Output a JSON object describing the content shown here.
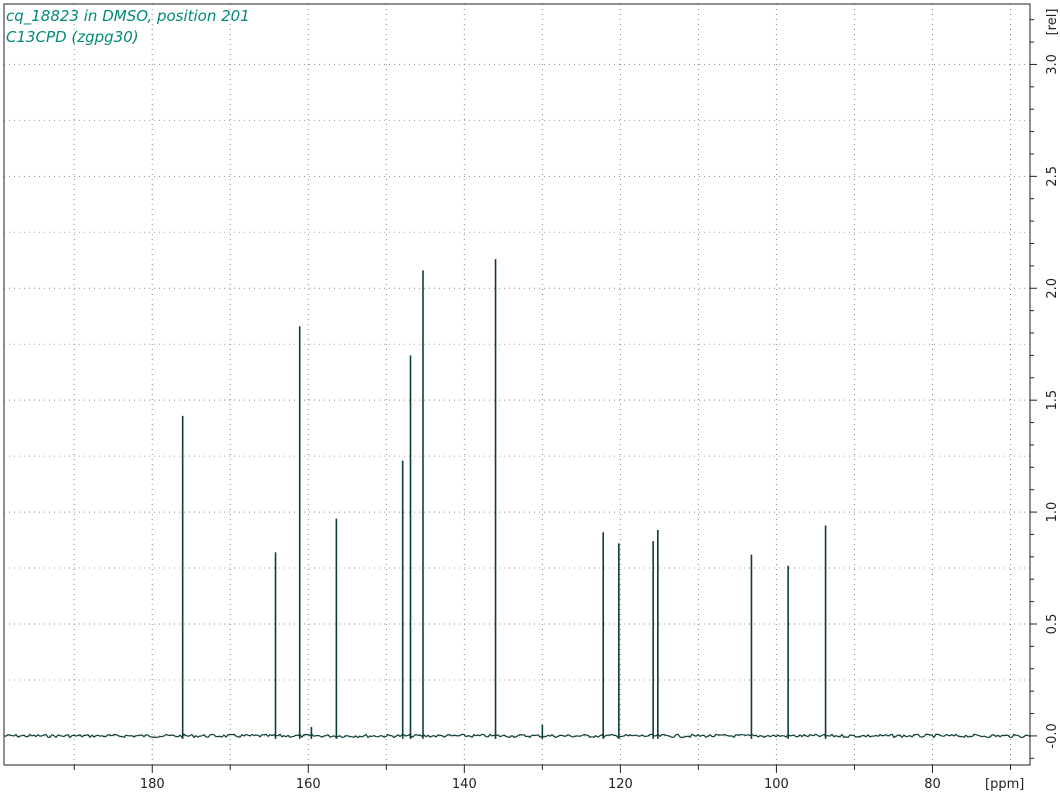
{
  "annotations": {
    "line1": "cq_18823 in DMSO, position 201",
    "line2": "C13CPD (zgpg30)"
  },
  "chart_data": {
    "type": "line",
    "title": "",
    "xlabel": "[ppm]",
    "ylabel": "[rel]",
    "x_reversed": true,
    "xlim": [
      199,
      67.5
    ],
    "ylim": [
      -0.13,
      3.27
    ],
    "x_ticks": [
      180,
      160,
      140,
      120,
      100,
      80
    ],
    "x_minor_ticks": [
      190,
      170,
      150,
      130,
      110,
      90,
      70
    ],
    "y_ticks": [
      -0.0,
      0.5,
      1.0,
      1.5,
      2.0,
      2.5,
      3.0
    ],
    "y_tick_labels": [
      "-0.0",
      "0.5",
      "1.0",
      "1.5",
      "2.0",
      "2.5",
      "3.0"
    ],
    "grid": true,
    "peaks": [
      {
        "ppm": 176.1,
        "intensity": 1.43
      },
      {
        "ppm": 164.2,
        "intensity": 0.82
      },
      {
        "ppm": 161.1,
        "intensity": 1.83
      },
      {
        "ppm": 159.6,
        "intensity": 0.04
      },
      {
        "ppm": 156.4,
        "intensity": 0.97
      },
      {
        "ppm": 147.9,
        "intensity": 1.23
      },
      {
        "ppm": 146.9,
        "intensity": 1.7
      },
      {
        "ppm": 145.3,
        "intensity": 2.08
      },
      {
        "ppm": 136.0,
        "intensity": 2.13
      },
      {
        "ppm": 130.0,
        "intensity": 0.05
      },
      {
        "ppm": 122.2,
        "intensity": 0.91
      },
      {
        "ppm": 120.2,
        "intensity": 0.86
      },
      {
        "ppm": 115.8,
        "intensity": 0.87
      },
      {
        "ppm": 115.2,
        "intensity": 0.92
      },
      {
        "ppm": 103.2,
        "intensity": 0.81
      },
      {
        "ppm": 98.5,
        "intensity": 0.76
      },
      {
        "ppm": 93.7,
        "intensity": 0.94
      }
    ],
    "colors": {
      "spectrum": "#0b3d3a",
      "annotation": "#00897b",
      "grid": "#888888",
      "axis": "#222222"
    }
  }
}
